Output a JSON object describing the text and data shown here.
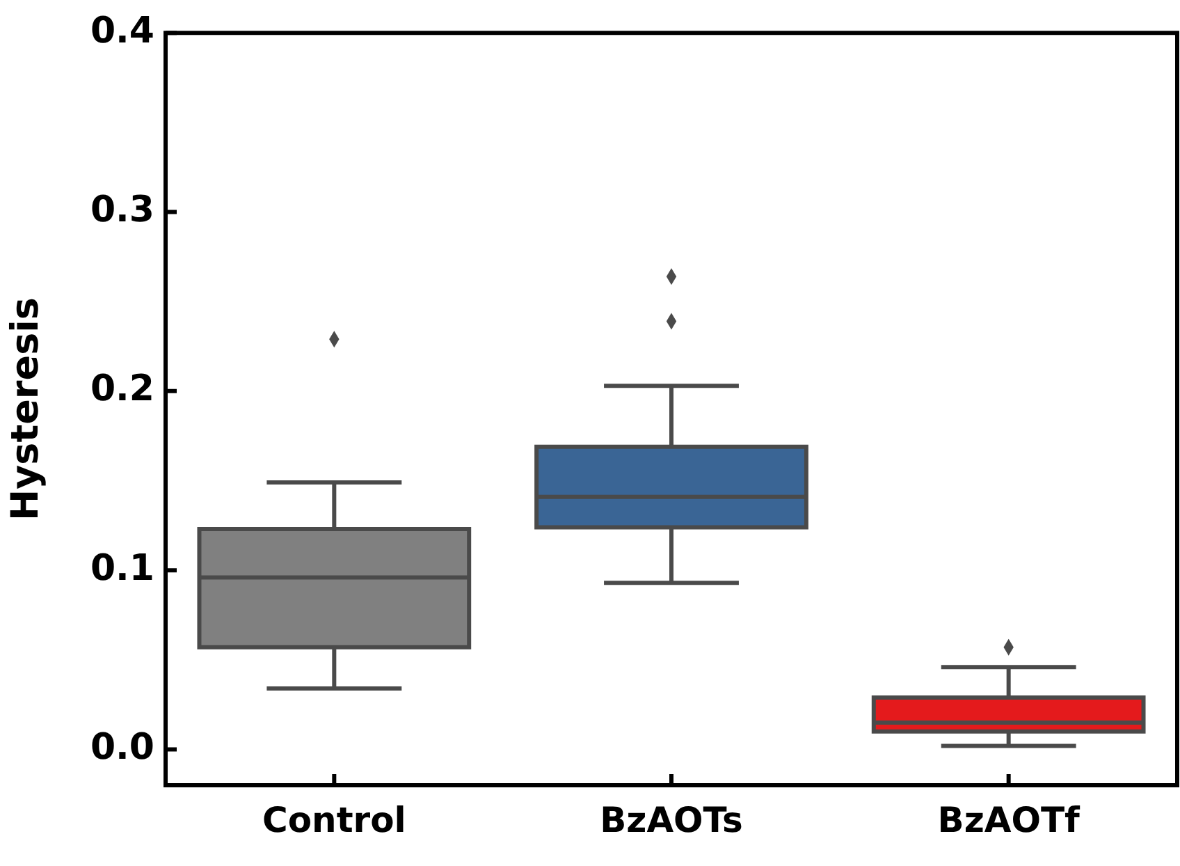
{
  "chart_data": {
    "type": "box",
    "ylabel": "Hysteresis",
    "categories": [
      "Control",
      "BzAOTs",
      "BzAOTf"
    ],
    "colors": [
      "#808080",
      "#3a6595",
      "#e41a1c"
    ],
    "boxes": [
      {
        "low": 0.034,
        "q1": 0.057,
        "median": 0.096,
        "q3": 0.123,
        "high": 0.149,
        "outliers": [
          0.229
        ]
      },
      {
        "low": 0.093,
        "q1": 0.124,
        "median": 0.141,
        "q3": 0.169,
        "high": 0.203,
        "outliers": [
          0.239,
          0.264
        ]
      },
      {
        "low": 0.002,
        "q1": 0.01,
        "median": 0.015,
        "q3": 0.029,
        "high": 0.046,
        "outliers": [
          0.057
        ]
      }
    ],
    "ylim": [
      -0.02,
      0.4
    ],
    "yticks": [
      {
        "value": 0,
        "label": "0.0"
      },
      0.1,
      0.2,
      0.3,
      0.4
    ],
    "grid": false,
    "legend": false,
    "marker": "diamond"
  }
}
